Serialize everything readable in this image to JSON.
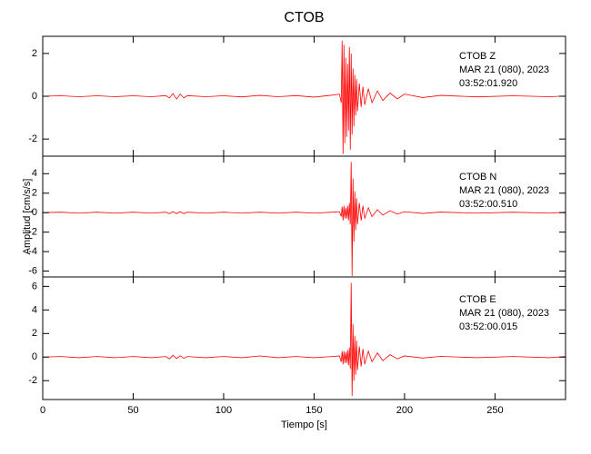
{
  "chart_data": [
    {
      "type": "line",
      "title": "CTOB",
      "annotations": [
        "CTOB   Z",
        "MAR 21 (080), 2023",
        "03:52:01.920"
      ],
      "x": [
        0,
        10,
        20,
        30,
        40,
        50,
        60,
        68,
        70,
        72,
        74,
        76,
        78,
        80,
        90,
        100,
        110,
        120,
        130,
        140,
        150,
        160,
        164,
        165,
        165.5,
        166,
        166.5,
        167,
        167.5,
        168,
        168.5,
        169,
        169.5,
        170,
        170.5,
        171,
        171.5,
        172,
        172.5,
        173,
        173.5,
        174,
        175,
        176,
        177,
        178,
        180,
        182,
        185,
        188,
        192,
        196,
        200,
        210,
        220,
        240,
        260,
        280,
        289
      ],
      "series": [
        {
          "color": "#ff0000",
          "values": [
            0,
            0.02,
            -0.02,
            0.02,
            -0.02,
            0.02,
            -0.02,
            0.03,
            -0.08,
            0.12,
            -0.13,
            0.1,
            -0.08,
            0.03,
            -0.02,
            0.02,
            -0.03,
            0.04,
            -0.02,
            0.03,
            -0.04,
            0.05,
            0.1,
            -0.3,
            2.6,
            -2.7,
            2.4,
            -2.2,
            1.8,
            -1.9,
            1.5,
            -1.6,
            2.3,
            -2.5,
            2.0,
            -1.8,
            1.3,
            -1.4,
            1.0,
            -0.9,
            0.8,
            -0.7,
            0.6,
            -0.5,
            0.45,
            -0.4,
            0.35,
            -0.3,
            0.25,
            -0.2,
            0.15,
            -0.12,
            0.1,
            -0.06,
            0.04,
            -0.03,
            0.02,
            -0.02,
            0.01
          ]
        }
      ],
      "xlim": [
        0,
        289
      ],
      "xticks": [
        0,
        50,
        100,
        150,
        200,
        250
      ],
      "ylim": [
        -2.8,
        2.8
      ],
      "yticks": [
        -2,
        0,
        2
      ]
    },
    {
      "type": "line",
      "ylabel": "Amplitud [cm/s/s]",
      "annotations": [
        "CTOB   N",
        "MAR 21 (080), 2023",
        "03:52:00.510"
      ],
      "x": [
        0,
        10,
        20,
        30,
        40,
        50,
        60,
        68,
        70,
        72,
        74,
        76,
        78,
        80,
        90,
        100,
        110,
        120,
        130,
        140,
        150,
        160,
        164,
        165,
        165.5,
        166,
        166.5,
        167,
        167.5,
        168,
        168.5,
        169,
        169.5,
        170,
        170.5,
        171,
        171.5,
        172,
        172.5,
        173,
        173.5,
        174,
        175,
        176,
        177,
        178,
        180,
        182,
        185,
        188,
        192,
        196,
        200,
        210,
        220,
        240,
        260,
        280,
        289
      ],
      "series": [
        {
          "color": "#ff0000",
          "values": [
            0,
            0.05,
            -0.05,
            0.05,
            -0.05,
            0.05,
            -0.05,
            0.05,
            -0.1,
            0.1,
            -0.1,
            0.1,
            -0.1,
            0.05,
            -0.05,
            0.05,
            -0.05,
            0.05,
            -0.05,
            0.05,
            -0.05,
            0.05,
            0.1,
            -0.4,
            0.6,
            -0.8,
            0.7,
            -0.6,
            0.5,
            -0.6,
            0.7,
            -0.8,
            1.0,
            -1.2,
            5.2,
            -6.5,
            3.5,
            -3.0,
            2.2,
            -1.8,
            1.5,
            -1.2,
            1.0,
            -0.8,
            0.7,
            -0.6,
            0.5,
            -0.4,
            0.3,
            -0.25,
            0.2,
            -0.15,
            0.1,
            -0.08,
            0.06,
            -0.05,
            0.05,
            -0.05,
            0.05
          ]
        }
      ],
      "xlim": [
        0,
        289
      ],
      "xticks": [
        0,
        50,
        100,
        150,
        200,
        250
      ],
      "ylim": [
        -6.6,
        5.8
      ],
      "yticks": [
        -6,
        -4,
        -2,
        0,
        2,
        4
      ]
    },
    {
      "type": "line",
      "xlabel": "Tiempo [s]",
      "annotations": [
        "CTOB   E",
        "MAR 21 (080), 2023",
        "03:52:00.015"
      ],
      "x": [
        0,
        10,
        20,
        30,
        40,
        50,
        60,
        68,
        70,
        72,
        74,
        76,
        78,
        80,
        90,
        100,
        110,
        120,
        130,
        140,
        150,
        160,
        164,
        165,
        165.5,
        166,
        166.5,
        167,
        167.5,
        168,
        168.5,
        169,
        169.5,
        170,
        170.5,
        171,
        171.5,
        172,
        172.5,
        173,
        173.5,
        174,
        175,
        176,
        177,
        178,
        180,
        182,
        185,
        188,
        192,
        196,
        200,
        210,
        220,
        240,
        260,
        280,
        289
      ],
      "series": [
        {
          "color": "#ff0000",
          "values": [
            0,
            0.05,
            -0.05,
            0.05,
            -0.05,
            0.05,
            -0.05,
            0.05,
            -0.15,
            0.15,
            -0.12,
            0.12,
            -0.1,
            0.05,
            -0.05,
            0.05,
            -0.05,
            0.1,
            -0.05,
            0.05,
            -0.05,
            0.05,
            0.1,
            -0.4,
            0.5,
            -0.6,
            0.5,
            -0.5,
            0.4,
            -0.5,
            0.6,
            -0.7,
            0.8,
            -1.0,
            6.3,
            -3.3,
            2.8,
            -2.0,
            1.8,
            -1.5,
            1.4,
            -1.1,
            0.9,
            -0.8,
            0.7,
            -0.6,
            0.5,
            -0.4,
            0.35,
            -0.3,
            0.2,
            -0.15,
            0.1,
            -0.08,
            0.06,
            -0.05,
            0.05,
            -0.05,
            0.05
          ]
        }
      ],
      "xlim": [
        0,
        289
      ],
      "xticks": [
        0,
        50,
        100,
        150,
        200,
        250
      ],
      "ylim": [
        -3.6,
        6.8
      ],
      "yticks": [
        -2,
        0,
        2,
        4,
        6
      ]
    }
  ]
}
